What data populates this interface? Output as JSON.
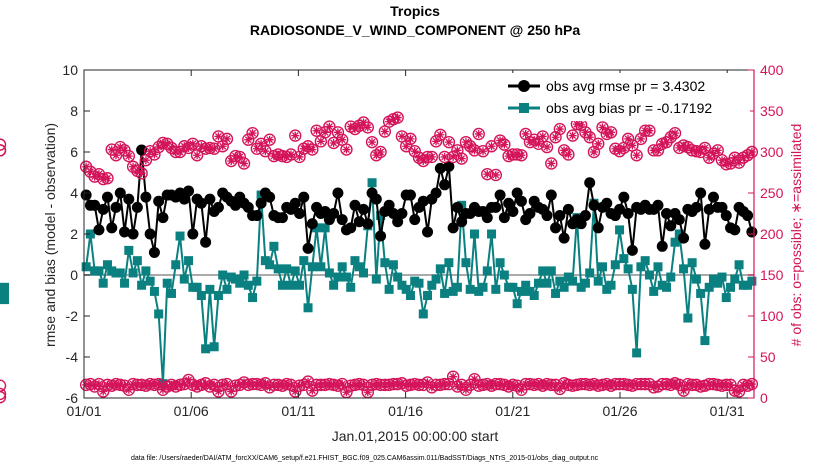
{
  "chart_data": {
    "type": "line",
    "title": "Tropics",
    "subtitle": "RADIOSONDE_V_WIND_COMPONENT @ 250 hPa",
    "xlabel": "Jan.01,2015 00:00:00 start",
    "ylabel_left": "rmse and bias (model - observation)",
    "ylabel_right": "# of obs: o=possible; ∗=assimilated",
    "footer": "data file: /Users/raeder/DAI/ATM_forcXX/CAM6_setup/f.e21.FHIST_BGC.f09_025.CAM6assim.011/BadSST/Diags_NTrS_2015-01/obs_diag_output.nc",
    "x_ticks": [
      {
        "label": "01/01",
        "day": 1
      },
      {
        "label": "01/06",
        "day": 6
      },
      {
        "label": "01/11",
        "day": 11
      },
      {
        "label": "01/16",
        "day": 16
      },
      {
        "label": "01/21",
        "day": 21
      },
      {
        "label": "01/26",
        "day": 26
      },
      {
        "label": "01/31",
        "day": 31
      }
    ],
    "x_range": [
      1,
      32.25
    ],
    "y_left_range": [
      -6,
      10
    ],
    "y_left_ticks": [
      "-6",
      "-4",
      "-2",
      "0",
      "2",
      "4",
      "6",
      "8",
      "10"
    ],
    "y_right_range": [
      0,
      400
    ],
    "y_right_ticks": [
      "0",
      "50",
      "100",
      "150",
      "200",
      "250",
      "300",
      "350",
      "400"
    ],
    "legend": {
      "rmse": "obs avg rmse pr = 3.4302",
      "bias": "obs avg bias pr = -0.17192",
      "position": "top-right"
    },
    "colors": {
      "rmse": "#000000",
      "bias": "#0a8080",
      "counts": "#d4145a",
      "zero_line": "#aaaaaa",
      "axis": "#262626"
    },
    "series_rmse": [
      3.9,
      3.4,
      3.4,
      2.2,
      3.2,
      3.8,
      2.3,
      3.3,
      4.0,
      2.1,
      3.7,
      2.0,
      3.3,
      6.1,
      3.8,
      2.0,
      1.1,
      3.6,
      2.8,
      3.9,
      3.9,
      3.8,
      4.0,
      3.7,
      4.1,
      2.0,
      3.7,
      3.5,
      1.6,
      3.7,
      3.1,
      3.3,
      4.0,
      3.8,
      3.6,
      3.4,
      3.8,
      3.5,
      3.3,
      2.9,
      2.9,
      3.5,
      4.0,
      3.8,
      2.9,
      2.8,
      2.8,
      3.3,
      3.2,
      3.5,
      3.0,
      3.8,
      1.3,
      2.5,
      3.3,
      3.0,
      3.1,
      2.7,
      3.0,
      4.0,
      2.7,
      2.2,
      2.3,
      3.4,
      2.6,
      3.2,
      2.5,
      4.0,
      3.7,
      1.9,
      3.1,
      3.4,
      3.0,
      2.6,
      3.0,
      3.9,
      3.9,
      2.7,
      3.3,
      3.6,
      2.1,
      3.7,
      4.0,
      5.2,
      4.4,
      5.3,
      2.3,
      3.3,
      2.6,
      3.0,
      3.0,
      3.3,
      3.1,
      3.1,
      2.8,
      3.3,
      3.3,
      3.9,
      2.8,
      3.5,
      3.1,
      4.0,
      3.6,
      2.7,
      3.0,
      3.6,
      3.3,
      3.2,
      2.9,
      3.9,
      2.3,
      2.9,
      1.8,
      3.2,
      2.5,
      2.7,
      2.5,
      2.9,
      4.5,
      3.4,
      2.3,
      3.3,
      3.5,
      3.0,
      2.9,
      3.2,
      3.8,
      3.0,
      1.2,
      3.3,
      3.2,
      3.4,
      3.2,
      3.2,
      3.4,
      1.4,
      3.0,
      2.4,
      3.0,
      2.7,
      1.8,
      3.2,
      3.1,
      3.3,
      4.0,
      1.5,
      3.2,
      3.8,
      3.3,
      3.3,
      2.9,
      2.3,
      2.2,
      3.3,
      3.1,
      2.9,
      2.1
    ],
    "series_bias": [
      0.4,
      2.0,
      0.2,
      0.2,
      -0.4,
      0.5,
      0.2,
      0.1,
      0.1,
      -0.4,
      1.2,
      0.1,
      0.7,
      -0.5,
      0.2,
      -0.3,
      -0.8,
      -1.9,
      -5.3,
      -0.4,
      -0.9,
      0.5,
      1.9,
      -0.2,
      0.7,
      -0.6,
      -0.6,
      -1.0,
      -3.6,
      -0.7,
      -3.5,
      -1.0,
      0.0,
      -0.7,
      -0.1,
      -0.2,
      -0.4,
      0.0,
      -0.5,
      -1.1,
      -0.3,
      3.9,
      0.7,
      0.5,
      1.4,
      0.3,
      -0.5,
      0.3,
      -0.5,
      0.2,
      -0.5,
      0.7,
      -1.6,
      0.4,
      2.3,
      0.4,
      2.3,
      0.1,
      -0.5,
      -0.1,
      0.4,
      -0.1,
      -0.6,
      0.7,
      0.4,
      0.1,
      2.4,
      4.5,
      -0.2,
      2.9,
      0.6,
      -0.7,
      0.5,
      -0.1,
      -0.5,
      -0.7,
      -1.0,
      -0.3,
      -0.4,
      -1.9,
      -1.0,
      -0.5,
      -0.2,
      0.3,
      -0.9,
      0.6,
      -0.8,
      -0.6,
      3.4,
      0.6,
      -0.7,
      2.0,
      -0.8,
      -0.6,
      0.2,
      2.0,
      -0.7,
      0.6,
      0.0,
      -0.6,
      -0.6,
      -1.4,
      -0.8,
      -0.5,
      -0.8,
      -1.0,
      -0.4,
      0.2,
      -0.4,
      0.2,
      -0.9,
      -0.3,
      -0.6,
      -0.1,
      -0.3,
      2.8,
      -0.6,
      -0.4,
      0.1,
      3.5,
      -0.3,
      0.4,
      -0.7,
      -0.5,
      0.5,
      2.2,
      0.8,
      0.3,
      -0.7,
      -3.8,
      0.4,
      0.7,
      0.0,
      -0.8,
      0.4,
      -0.5,
      -0.6,
      -0.1,
      1.6,
      2.0,
      0.3,
      -2.1,
      0.6,
      -0.2,
      -0.9,
      -3.2,
      -0.6,
      -0.2,
      -0.4,
      -0.1,
      -1.1,
      -0.6,
      -0.2,
      0.5,
      -0.5,
      -0.5,
      -0.3,
      -0.6,
      -0.8,
      -1.2
    ],
    "series_count_possible_high": [
      282,
      276,
      270,
      273,
      267,
      268,
      303,
      296,
      306,
      302,
      295,
      282,
      277,
      274,
      290,
      301,
      297,
      306,
      311,
      310,
      305,
      300,
      300,
      307,
      305,
      310,
      296,
      307,
      304,
      305,
      304,
      319,
      307,
      316,
      289,
      295,
      294,
      286,
      315,
      323,
      304,
      310,
      301,
      315,
      295,
      297,
      295,
      294,
      297,
      320,
      294,
      304,
      307,
      303,
      326,
      313,
      324,
      331,
      311,
      324,
      315,
      303,
      331,
      328,
      332,
      336,
      330,
      312,
      296,
      300,
      325,
      337,
      340,
      342,
      319,
      307,
      316,
      301,
      293,
      289,
      294,
      294,
      313,
      321,
      294,
      312,
      294,
      302,
      292,
      312,
      307,
      302,
      322,
      301,
      273,
      307,
      272,
      314,
      309,
      295,
      297,
      297,
      296,
      322,
      312,
      315,
      310,
      319,
      306,
      286,
      318,
      328,
      302,
      297,
      320,
      334,
      333,
      324,
      318,
      300,
      310,
      330,
      322,
      324,
      304,
      301,
      305,
      316,
      308,
      296,
      316,
      326,
      326,
      302,
      302,
      310,
      312,
      318,
      323,
      305,
      308,
      306,
      302,
      301,
      300,
      305,
      293,
      298,
      302,
      290,
      285,
      286,
      293,
      287,
      293,
      296,
      300,
      302,
      302,
      309
    ],
    "series_count_possible_low": [
      16,
      17,
      14,
      17,
      8,
      16,
      15,
      17,
      16,
      15,
      10,
      17,
      16,
      16,
      15,
      17,
      16,
      17,
      10,
      14,
      16,
      14,
      16,
      17,
      22,
      16,
      14,
      16,
      18,
      14,
      16,
      8,
      16,
      17,
      8,
      15,
      16,
      19,
      16,
      17,
      17,
      16,
      18,
      13,
      16,
      16,
      15,
      17,
      16,
      8,
      15,
      16,
      20,
      9,
      16,
      16,
      16,
      17,
      16,
      15,
      17,
      7,
      15,
      16,
      17,
      16,
      7,
      16,
      17,
      16,
      16,
      16,
      17,
      17,
      18,
      15,
      16,
      17,
      16,
      16,
      19,
      13,
      16,
      16,
      17,
      17,
      26,
      14,
      16,
      10,
      16,
      23,
      15,
      16,
      17,
      15,
      17,
      17,
      16,
      14,
      16,
      15,
      10,
      17,
      17,
      16,
      17,
      15,
      17,
      16,
      16,
      11,
      18,
      16,
      15,
      16,
      17,
      17,
      16,
      17,
      15,
      16,
      17,
      15,
      17,
      17,
      17,
      16,
      15,
      17,
      17,
      17,
      17,
      13,
      14,
      17,
      17,
      16,
      18,
      16,
      9,
      17,
      16,
      16,
      14,
      15,
      17,
      17,
      16,
      15,
      16,
      16,
      9,
      8,
      16,
      15,
      17,
      15,
      5,
      1
    ]
  }
}
